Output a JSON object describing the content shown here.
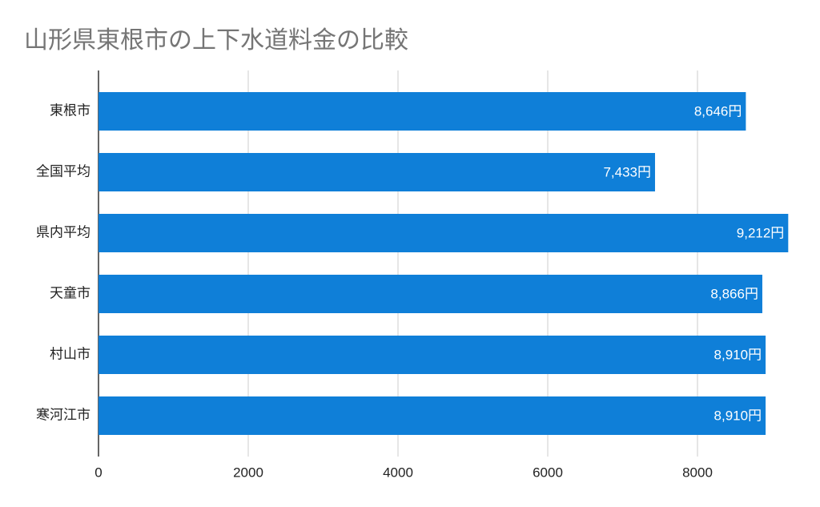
{
  "chart_data": {
    "type": "bar",
    "orientation": "horizontal",
    "title": "山形県東根市の上下水道料金の比較",
    "categories": [
      "東根市",
      "全国平均",
      "県内平均",
      "天童市",
      "村山市",
      "寒河江市"
    ],
    "values": [
      8646,
      7433,
      9212,
      8866,
      8910,
      8910
    ],
    "value_labels": [
      "8,646円",
      "7,433円",
      "9,212円",
      "8,866円",
      "8,910円",
      "8,910円"
    ],
    "color": "#0f7fd8",
    "xlim": [
      0,
      9500
    ],
    "xticks": [
      0,
      2000,
      4000,
      6000,
      8000
    ],
    "grid": true
  }
}
